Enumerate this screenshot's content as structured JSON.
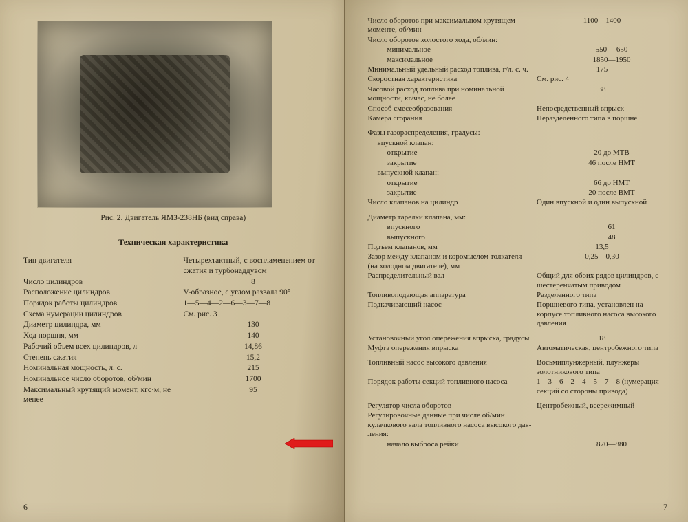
{
  "paper_bg": "#d3c6a6",
  "text_color": "#2a2418",
  "arrow_color": "#e01b1b",
  "left_page": {
    "caption": "Рис. 2. Двигатель ЯМЗ-238НБ (вид справа)",
    "section_title": "Техническая характеристика",
    "page_number": "6",
    "specs": [
      {
        "label": "Тип двигателя",
        "value": "Четырехтактный, с воспламе­нением от сжатия и турбонад­дувом"
      },
      {
        "label": "Число цилиндров",
        "value": "8",
        "center": true
      },
      {
        "label": "Расположение цилиндров",
        "value": "V-образное, с углом развала 90°"
      },
      {
        "label": "Порядок работы цилиндров",
        "value": "1—5—4—2—6—3—7—8"
      },
      {
        "label": "Схема нумерации цилиндров",
        "value": "См. рис. 3"
      },
      {
        "label": "Диаметр цилиндра, мм",
        "value": "130",
        "center": true
      },
      {
        "label": "Ход поршня, мм",
        "value": "140",
        "center": true
      },
      {
        "label": "Рабочий объем всех цилинд­ров, л",
        "value": "14,86",
        "center": true
      },
      {
        "label": "Степень сжатия",
        "value": "15,2",
        "center": true,
        "arrow": true
      },
      {
        "label": "Номинальная мощность, л. с.",
        "value": "215",
        "center": true
      },
      {
        "label": "Номинальное число оборотов, об/мин",
        "value": "1700",
        "center": true
      },
      {
        "label": "Максимальный крутящий момент, кгс·м, не менее",
        "value": "95",
        "center": true
      }
    ]
  },
  "right_page": {
    "page_number": "7",
    "specs": [
      {
        "label": "Число оборотов при максимальном крутящем моменте, об/мин",
        "value": "1100—1400",
        "center": true
      },
      {
        "label": "Число оборотов холостого хода, об/мин:",
        "value": ""
      },
      {
        "label": "минимальное",
        "value": "550— 650",
        "indent": 2,
        "center": true
      },
      {
        "label": "максимальное",
        "value": "1850—1950",
        "indent": 2,
        "center": true
      },
      {
        "label": "Минимальный удельный расход топлива, г/л. с. ч.",
        "value": "175",
        "center": true
      },
      {
        "label": "Скоростная характеристика",
        "value": "См. рис. 4"
      },
      {
        "label": "Часовой расход топлива при но­минальной мощности, кг/час, не более",
        "value": "38",
        "center": true
      },
      {
        "label": "Способ смесеобразования",
        "value": "Непосредственный впрыск"
      },
      {
        "label": "Камера сгорания",
        "value": "Неразделенного типа в пор­шне"
      },
      {
        "label": "",
        "value": ""
      },
      {
        "label": "Фазы газораспределения, градусы:",
        "value": ""
      },
      {
        "label": "впускной клапан:",
        "value": "",
        "indent": 1
      },
      {
        "label": "открытие",
        "value": "20 до МТВ",
        "indent": 2,
        "center": true
      },
      {
        "label": "закрытие",
        "value": "46 после НМТ",
        "indent": 2,
        "center": true
      },
      {
        "label": "выпускной клапан:",
        "value": "",
        "indent": 1
      },
      {
        "label": "открытие",
        "value": "66 до НМТ",
        "indent": 2,
        "center": true
      },
      {
        "label": "закрытие",
        "value": "20 после ВМТ",
        "indent": 2,
        "center": true
      },
      {
        "label": "Число клапанов на цилиндр",
        "value": "Один впускной и один выпуск­ной"
      },
      {
        "label": "",
        "value": ""
      },
      {
        "label": "Диаметр тарелки клапана, мм:",
        "value": ""
      },
      {
        "label": "впускного",
        "value": "61",
        "indent": 2,
        "center": true
      },
      {
        "label": "выпускного",
        "value": "48",
        "indent": 2,
        "center": true
      },
      {
        "label": "Подъем клапанов, мм",
        "value": "13,5",
        "center": true
      },
      {
        "label": "Зазор между клапаном и коромыс­лом толкателя (на холодном двигателе), мм",
        "value": "0,25—0,30",
        "center": true
      },
      {
        "label": "Распределительный вал",
        "value": "Общий для обоих рядов ци­линдров, с шестеренчатым приводом"
      },
      {
        "label": "Топливоподающая аппаратура",
        "value": "Разделенного типа"
      },
      {
        "label": "Подкачивающий насос",
        "value": "Поршневого типа, установлен на корпусе топливного насо­са высокого давления"
      },
      {
        "label": "",
        "value": ""
      },
      {
        "label": "Установочный угол опережения впрыска, градусы",
        "value": "18",
        "center": true
      },
      {
        "label": "Муфта опережения впрыска",
        "value": "Автоматическая, центробежного типа"
      },
      {
        "label": "",
        "value": ""
      },
      {
        "label": "Топливный насос высокого дав­ления",
        "value": "Восьмиплунжерный, плунжеры золотникового типа"
      },
      {
        "label": "Порядок работы секций топлив­ного насоса",
        "value": "1—3—6—2—4—5—7—8 (нуме­рация секций со стороны при­вода)"
      },
      {
        "label": "",
        "value": ""
      },
      {
        "label": "Регулятор числа оборотов",
        "value": "Центробежный, всережимный"
      },
      {
        "label": "Регулировочные данные при числе об/мин кулачкового вала то­пливного насоса высокого дав­ления:",
        "value": ""
      },
      {
        "label": "начало выброса рейки",
        "value": "870—880",
        "indent": 2,
        "center": true
      }
    ]
  }
}
